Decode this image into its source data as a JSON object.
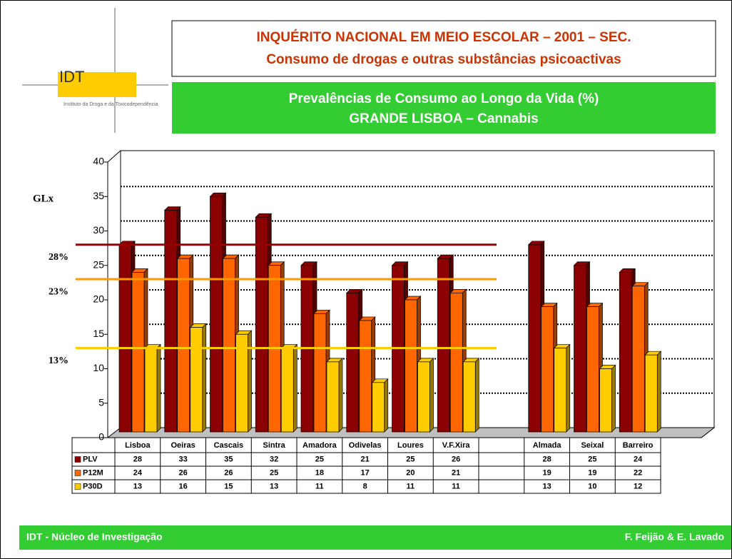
{
  "header": {
    "title_line1": "INQUÉRITO NACIONAL EM MEIO ESCOLAR – 2001 – SEC.",
    "title_line2": "Consumo de drogas e outras substâncias psicoactivas"
  },
  "logo": {
    "text": "IDT",
    "subtitle": "Instituto da Droga e da Toxicodependência"
  },
  "subtitle_box": {
    "line1": "Prevalências de Consumo ao Longo da Vida (%)",
    "line2": "GRANDE LISBOA – Cannabis"
  },
  "chart_data": {
    "type": "bar",
    "categories": [
      "Lisboa",
      "Oeiras",
      "Cascais",
      "Sintra",
      "Amadora",
      "Odivelas",
      "Loures",
      "V.F.Xira",
      null,
      "Almada",
      "Seixal",
      "Barreiro"
    ],
    "series": [
      {
        "name": "PLV",
        "color": "#8b0000",
        "values": [
          28,
          33,
          35,
          32,
          25,
          21,
          25,
          26,
          null,
          28,
          25,
          24
        ]
      },
      {
        "name": "P12M",
        "color": "#ff6600",
        "values": [
          24,
          26,
          26,
          25,
          18,
          17,
          20,
          21,
          null,
          19,
          19,
          22
        ]
      },
      {
        "name": "P30D",
        "color": "#ffcc00",
        "values": [
          13,
          16,
          15,
          13,
          11,
          8,
          11,
          11,
          null,
          13,
          10,
          12
        ]
      }
    ],
    "ylim": [
      0,
      40
    ],
    "yticks": [
      0,
      5,
      10,
      15,
      20,
      25,
      30,
      35,
      40
    ],
    "grid": true,
    "group_label": "GLx",
    "reference_lines": [
      {
        "value": 28,
        "label": "28%",
        "color": "#990000"
      },
      {
        "value": 23,
        "label": "23%",
        "color": "#ff9900"
      },
      {
        "value": 13,
        "label": "13%",
        "color": "#ffcc00"
      }
    ]
  },
  "footer": {
    "left": "IDT - Núcleo de Investigação",
    "right": "F. Feijão & E. Lavado"
  }
}
